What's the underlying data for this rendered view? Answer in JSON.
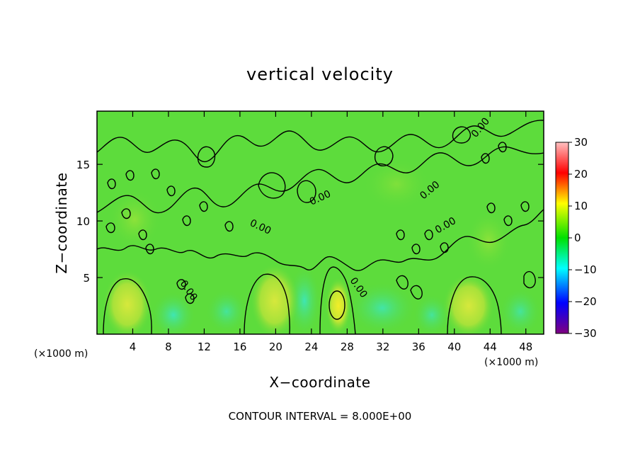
{
  "chart_data": {
    "type": "heatmap",
    "title": "vertical velocity",
    "xlabel": "X−coordinate",
    "ylabel": "Z−coordinate",
    "x_unit": "(×1000 m)",
    "x_unit_right": "(×1000 m)",
    "xlim": [
      0,
      50
    ],
    "ylim": [
      0,
      19.7
    ],
    "x_ticks": [
      4,
      8,
      12,
      16,
      20,
      24,
      28,
      32,
      36,
      40,
      44,
      48
    ],
    "x_tick_labels": [
      "4",
      "8",
      "12",
      "16",
      "20",
      "24",
      "28",
      "32",
      "36",
      "40",
      "44",
      "48"
    ],
    "y_ticks": [
      5,
      10,
      15
    ],
    "y_tick_labels": [
      "5",
      "10",
      "15"
    ],
    "colorbar": {
      "range": [
        -30,
        30
      ],
      "ticks": [
        30,
        20,
        10,
        0,
        -10,
        -20,
        -30
      ],
      "tick_labels": [
        "30",
        "20",
        "10",
        "0",
        "−10",
        "−20",
        "−30"
      ],
      "colors": [
        "#800080",
        "#0000ff",
        "#00ffff",
        "#00e000",
        "#ffff00",
        "#ff0000",
        "#ffc0c0"
      ]
    },
    "contour_labels": [
      {
        "text": "0.00",
        "x": 43.3,
        "y": 17.2
      },
      {
        "text": "0.00",
        "x": 18.3,
        "y": 9.7
      },
      {
        "text": "0.00",
        "x": 27.4,
        "y": 12.1
      },
      {
        "text": "0.00",
        "x": 37.6,
        "y": 12.5
      },
      {
        "text": "0.00",
        "x": 39.8,
        "y": 9.8
      },
      {
        "text": "0.00",
        "x": 10.2,
        "y": 4.2
      },
      {
        "text": "0.00",
        "x": 29.2,
        "y": 4.4
      }
    ],
    "updraft_cores": [
      {
        "x": 3.0,
        "z": 2.5,
        "value": 8
      },
      {
        "x": 20.0,
        "z": 3.0,
        "value": 9
      },
      {
        "x": 26.8,
        "z": 2.4,
        "value": 11
      },
      {
        "x": 41.0,
        "z": 2.3,
        "value": 8
      }
    ],
    "annotation": "CONTOUR INTERVAL = 8.000E+00"
  }
}
